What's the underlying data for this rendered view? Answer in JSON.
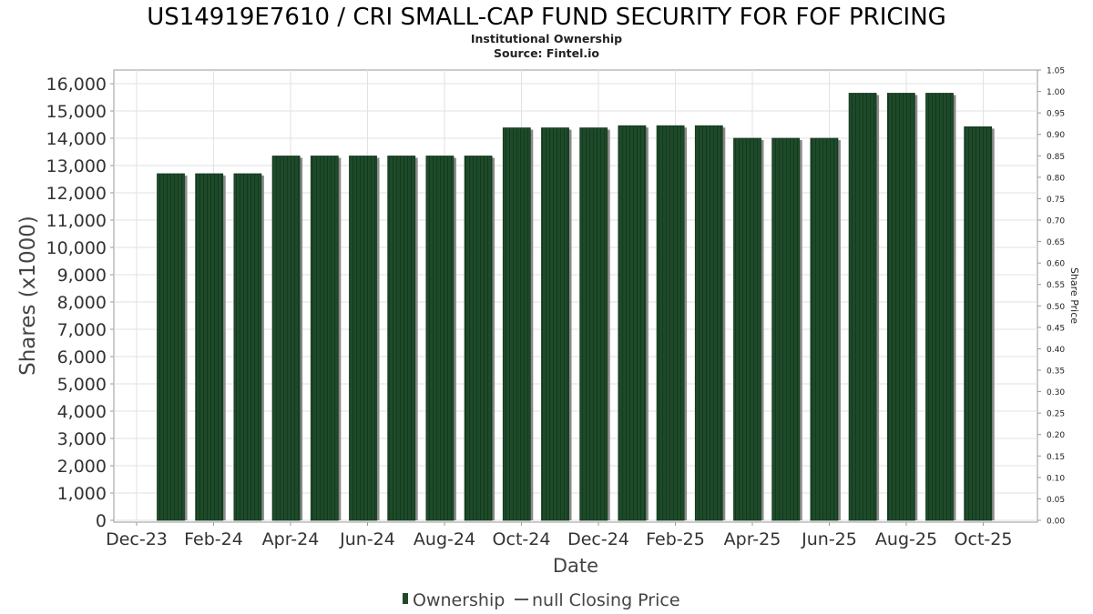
{
  "chart_data": {
    "type": "bar",
    "title": "US14919E7610 / CRI SMALL-CAP FUND SECURITY FOR FOF PRICING",
    "subtitle": "Institutional Ownership",
    "source": "Source: Fintel.io",
    "xlabel": "Date",
    "ylabel": "Shares (x1000)",
    "y2label": "Share Price",
    "ylim": [
      0,
      16500
    ],
    "y2lim": [
      0,
      1.05
    ],
    "yticks": [
      "0",
      "1,000",
      "2,000",
      "3,000",
      "4,000",
      "5,000",
      "6,000",
      "7,000",
      "8,000",
      "9,000",
      "10,000",
      "11,000",
      "12,000",
      "13,000",
      "14,000",
      "15,000",
      "16,000"
    ],
    "y2ticks": [
      "0.00",
      "0.05",
      "0.10",
      "0.15",
      "0.20",
      "0.25",
      "0.30",
      "0.35",
      "0.40",
      "0.45",
      "0.50",
      "0.55",
      "0.60",
      "0.65",
      "0.70",
      "0.75",
      "0.80",
      "0.85",
      "0.90",
      "0.95",
      "1.00",
      "1.05"
    ],
    "xticks": [
      "Dec-23",
      "Feb-24",
      "Apr-24",
      "Jun-24",
      "Aug-24",
      "Oct-24",
      "Dec-24",
      "Feb-25",
      "Apr-25",
      "Jun-25",
      "Aug-25",
      "Oct-25"
    ],
    "series": [
      {
        "name": "Ownership",
        "values": [
          12700,
          12700,
          12700,
          13350,
          13350,
          13350,
          13350,
          13350,
          13350,
          14380,
          14380,
          14380,
          14460,
          14460,
          14460,
          14000,
          14000,
          14000,
          15650,
          15650,
          15650,
          14420
        ]
      }
    ],
    "legend": [
      {
        "label": "Ownership",
        "color": "#1e4a2a"
      },
      {
        "label": "null Closing Price",
        "color": "#555555"
      }
    ],
    "grid": true,
    "legend_position": "bottom-center"
  },
  "colors": {
    "bar": "#1e4a2a",
    "bar_stripe": "#123a1d",
    "bar_shadow": "#8a8a8a",
    "grid": "#e2e2e2",
    "axis_text": "#333333"
  }
}
